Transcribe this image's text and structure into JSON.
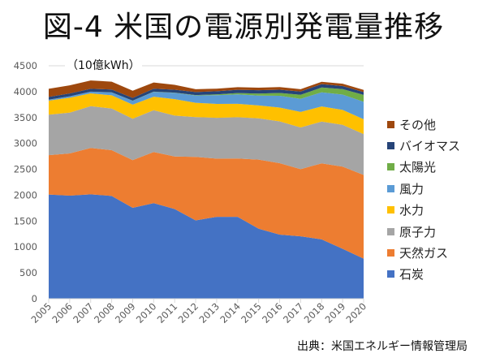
{
  "title": "図-4 米国の電源別発電量推移",
  "unit_label": "（10億kWh）",
  "source": "出典：米国エネルギー情報管理局",
  "chart_data": {
    "type": "area",
    "stacked": true,
    "title": "図-4 米国の電源別発電量推移",
    "ylabel": "（10億kWh）",
    "xlabel": "",
    "ylim": [
      0,
      4500
    ],
    "yticks": [
      0,
      500,
      1000,
      1500,
      2000,
      2500,
      3000,
      3500,
      4000,
      4500
    ],
    "grid": true,
    "legend_position": "right",
    "categories": [
      "2005",
      "2006",
      "2007",
      "2008",
      "2009",
      "2010",
      "2011",
      "2012",
      "2013",
      "2014",
      "2015",
      "2016",
      "2017",
      "2018",
      "2019",
      "2020"
    ],
    "series": [
      {
        "name": "石炭",
        "color": "#4472C4",
        "values": [
          2013,
          1991,
          2016,
          1986,
          1756,
          1847,
          1733,
          1514,
          1581,
          1582,
          1352,
          1239,
          1206,
          1146,
          965,
          774
        ]
      },
      {
        "name": "天然ガス",
        "color": "#ED7D31",
        "values": [
          761,
          816,
          897,
          883,
          921,
          988,
          1014,
          1226,
          1125,
          1127,
          1335,
          1380,
          1297,
          1469,
          1586,
          1617
        ]
      },
      {
        "name": "原子力",
        "color": "#A5A5A5",
        "values": [
          782,
          787,
          806,
          806,
          799,
          807,
          790,
          769,
          789,
          797,
          797,
          806,
          805,
          807,
          809,
          790
        ]
      },
      {
        "name": "水力",
        "color": "#FFC000",
        "values": [
          270,
          289,
          247,
          254,
          273,
          260,
          319,
          276,
          269,
          259,
          249,
          268,
          300,
          292,
          288,
          286
        ]
      },
      {
        "name": "風力",
        "color": "#5B9BD5",
        "values": [
          18,
          27,
          34,
          55,
          74,
          95,
          120,
          141,
          168,
          182,
          191,
          227,
          254,
          273,
          295,
          338
        ]
      },
      {
        "name": "太陽光",
        "color": "#70AD47",
        "values": [
          1,
          1,
          1,
          2,
          2,
          3,
          4,
          8,
          16,
          25,
          39,
          55,
          77,
          94,
          107,
          132
        ]
      },
      {
        "name": "バイオマス",
        "color": "#264478",
        "values": [
          54,
          54,
          55,
          55,
          54,
          57,
          57,
          58,
          60,
          64,
          64,
          63,
          63,
          64,
          58,
          56
        ]
      },
      {
        "name": "その他",
        "color": "#9E480E",
        "values": [
          156,
          156,
          159,
          152,
          139,
          120,
          95,
          55,
          50,
          50,
          50,
          50,
          45,
          45,
          45,
          40
        ]
      }
    ]
  }
}
